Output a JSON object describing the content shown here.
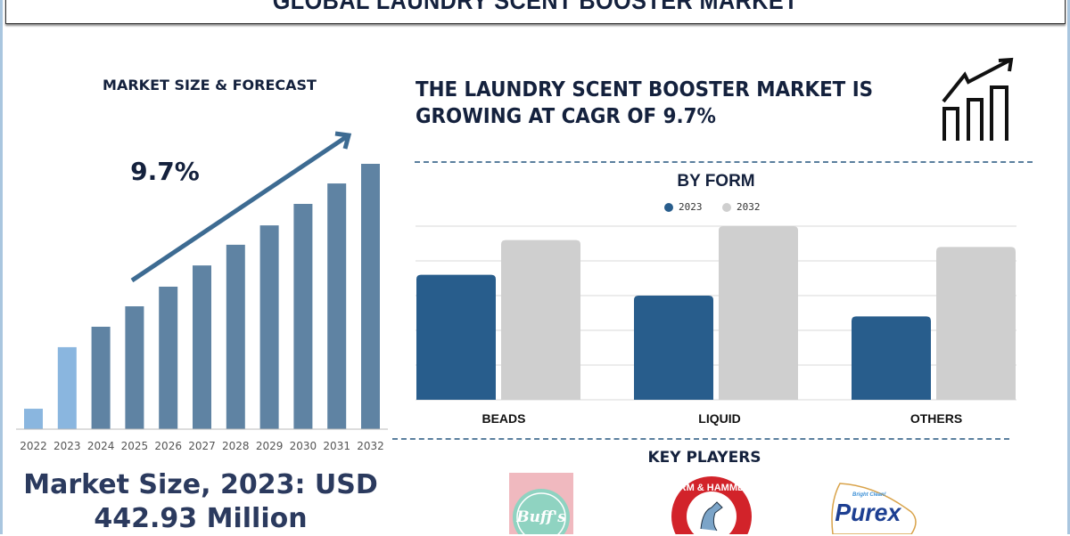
{
  "header": {
    "title": "GLOBAL LAUNDRY SCENT BOOSTER MARKET"
  },
  "left_panel": {
    "heading": "MARKET SIZE & FORECAST",
    "cagr_label": "9.7%",
    "market_size_line1": "Market Size, 2023: USD",
    "market_size_line2": "442.93 Million"
  },
  "right_panel": {
    "headline_line1": "THE LAUNDRY SCENT BOOSTER MARKET IS",
    "headline_line2": "GROWING AT CAGR OF 9.7%",
    "icon": "growth-chart-icon"
  },
  "key_players": {
    "title": "KEY PLAYERS",
    "logos": [
      "Buff's",
      "ARM & HAMMER",
      "Purex"
    ]
  },
  "colors": {
    "forecast_bar": "#5f83a3",
    "historic_bar": "#8ab6df",
    "series_2023": "#285d8c",
    "series_2032": "#cfcfcf",
    "text_dark": "#14213d"
  },
  "chart_data": [
    {
      "type": "bar",
      "title": "MARKET SIZE & FORECAST",
      "categories": [
        "2022",
        "2023",
        "2024",
        "2025",
        "2026",
        "2027",
        "2028",
        "2029",
        "2030",
        "2031",
        "2032"
      ],
      "values": [
        7.7,
        30.9,
        38.6,
        46.3,
        53.7,
        61.7,
        69.5,
        76.8,
        84.9,
        92.6,
        100
      ],
      "highlighted_historic": [
        "2022",
        "2023"
      ],
      "annotation": "9.7%",
      "ylim": [
        0,
        100
      ],
      "grid": false
    },
    {
      "type": "bar",
      "title": "BY FORM",
      "categories": [
        "BEADS",
        "LIQUID",
        "OTHERS"
      ],
      "series": [
        {
          "name": "2023",
          "values": [
            3.6,
            3.0,
            2.4
          ]
        },
        {
          "name": "2032",
          "values": [
            4.6,
            5.0,
            4.4
          ]
        }
      ],
      "ylim": [
        0,
        5
      ],
      "grid": true,
      "legend": "top-center"
    }
  ]
}
